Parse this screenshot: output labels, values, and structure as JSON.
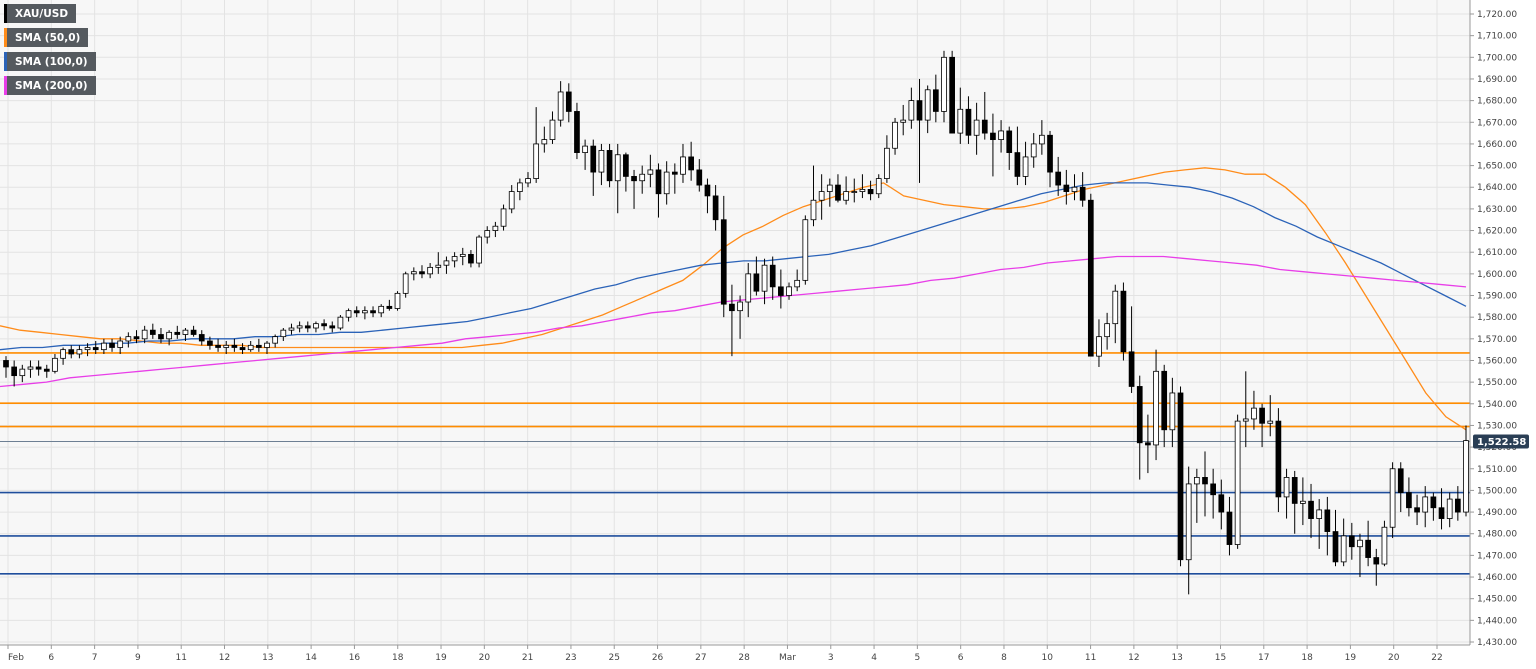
{
  "legend": {
    "symbol": "XAU/USD",
    "sma50": "SMA (50,0)",
    "sma100": "SMA (100,0)",
    "sma200": "SMA (200,0)"
  },
  "last_price_label": "1,522.58",
  "colors": {
    "sma50": "#ff8c1a",
    "sma100": "#2b63b8",
    "sma200": "#e83ee8",
    "resistance": "#ff8c00",
    "support": "#1f4e9c",
    "candle_up": "#ffffff",
    "candle_down": "#000000",
    "last_price": "#2a3e55"
  },
  "chart_data": {
    "type": "candlestick",
    "symbol": "XAU/USD",
    "ylim": [
      1430,
      1720
    ],
    "y_ticks": [
      1430,
      1440,
      1450,
      1460,
      1470,
      1480,
      1490,
      1500,
      1510,
      1520,
      1530,
      1540,
      1550,
      1560,
      1570,
      1580,
      1590,
      1600,
      1610,
      1620,
      1630,
      1640,
      1650,
      1660,
      1670,
      1680,
      1690,
      1700,
      1710,
      1720
    ],
    "y_tick_labels": [
      "1,430.00",
      "1,440.00",
      "1,450.00",
      "1,460.00",
      "1,470.00",
      "1,480.00",
      "1,490.00",
      "1,500.00",
      "1,510.00",
      "1,520.00",
      "1,530.00",
      "1,540.00",
      "1,550.00",
      "1,560.00",
      "1,570.00",
      "1,580.00",
      "1,590.00",
      "1,600.00",
      "1,610.00",
      "1,620.00",
      "1,630.00",
      "1,640.00",
      "1,650.00",
      "1,660.00",
      "1,670.00",
      "1,680.00",
      "1,690.00",
      "1,700.00",
      "1,710.00",
      "1,720.00"
    ],
    "x_labels": [
      "Feb",
      "6",
      "7",
      "9",
      "11",
      "12",
      "13",
      "14",
      "16",
      "18",
      "19",
      "20",
      "21",
      "23",
      "25",
      "26",
      "27",
      "28",
      "Mar",
      "3",
      "4",
      "5",
      "6",
      "8",
      "10",
      "11",
      "12",
      "13",
      "15",
      "17",
      "18",
      "19",
      "20",
      "22"
    ],
    "last_price": 1522.58,
    "horizontal_levels": {
      "resistance": [
        1563.5,
        1540.3,
        1529.5
      ],
      "support": [
        1499.0,
        1479.0,
        1461.5
      ]
    },
    "candles": [
      [
        1560,
        1562,
        1552,
        1557
      ],
      [
        1557,
        1560,
        1548,
        1553
      ],
      [
        1553,
        1558,
        1550,
        1556
      ],
      [
        1556,
        1560,
        1552,
        1557
      ],
      [
        1557,
        1560,
        1553,
        1556
      ],
      [
        1556,
        1558,
        1552,
        1555
      ],
      [
        1555,
        1563,
        1554,
        1561
      ],
      [
        1561,
        1566,
        1558,
        1565
      ],
      [
        1565,
        1567,
        1561,
        1563
      ],
      [
        1563,
        1567,
        1561,
        1565
      ],
      [
        1565,
        1568,
        1562,
        1566
      ],
      [
        1566,
        1569,
        1563,
        1565
      ],
      [
        1565,
        1570,
        1563,
        1568
      ],
      [
        1568,
        1570,
        1564,
        1566
      ],
      [
        1566,
        1571,
        1563,
        1569
      ],
      [
        1569,
        1573,
        1566,
        1571
      ],
      [
        1571,
        1574,
        1568,
        1570
      ],
      [
        1570,
        1576,
        1568,
        1574
      ],
      [
        1574,
        1577,
        1570,
        1572
      ],
      [
        1572,
        1575,
        1568,
        1570
      ],
      [
        1570,
        1574,
        1567,
        1573
      ],
      [
        1573,
        1576,
        1570,
        1572
      ],
      [
        1572,
        1575,
        1569,
        1574
      ],
      [
        1574,
        1576,
        1571,
        1572
      ],
      [
        1572,
        1574,
        1567,
        1569
      ],
      [
        1569,
        1571,
        1565,
        1567
      ],
      [
        1567,
        1570,
        1564,
        1566
      ],
      [
        1566,
        1569,
        1563,
        1567
      ],
      [
        1567,
        1570,
        1564,
        1566
      ],
      [
        1566,
        1568,
        1563,
        1565
      ],
      [
        1565,
        1569,
        1564,
        1567
      ],
      [
        1567,
        1570,
        1564,
        1566
      ],
      [
        1566,
        1569,
        1563,
        1568
      ],
      [
        1568,
        1572,
        1566,
        1571
      ],
      [
        1571,
        1575,
        1569,
        1574
      ],
      [
        1574,
        1577,
        1572,
        1575
      ],
      [
        1575,
        1578,
        1573,
        1576
      ],
      [
        1576,
        1578,
        1573,
        1575
      ],
      [
        1575,
        1578,
        1573,
        1577
      ],
      [
        1577,
        1579,
        1574,
        1576
      ],
      [
        1576,
        1578,
        1573,
        1575
      ],
      [
        1575,
        1581,
        1574,
        1580
      ],
      [
        1580,
        1584,
        1578,
        1583
      ],
      [
        1583,
        1585,
        1580,
        1582
      ],
      [
        1582,
        1585,
        1579,
        1583
      ],
      [
        1583,
        1585,
        1580,
        1582
      ],
      [
        1582,
        1586,
        1580,
        1585
      ],
      [
        1585,
        1588,
        1583,
        1584
      ],
      [
        1584,
        1592,
        1583,
        1591
      ],
      [
        1591,
        1601,
        1589,
        1600
      ],
      [
        1600,
        1603,
        1597,
        1601
      ],
      [
        1601,
        1604,
        1598,
        1600
      ],
      [
        1600,
        1605,
        1598,
        1603
      ],
      [
        1603,
        1610,
        1600,
        1604
      ],
      [
        1604,
        1608,
        1600,
        1606
      ],
      [
        1606,
        1610,
        1603,
        1608
      ],
      [
        1608,
        1612,
        1604,
        1609
      ],
      [
        1609,
        1611,
        1603,
        1605
      ],
      [
        1605,
        1618,
        1603,
        1617
      ],
      [
        1617,
        1622,
        1614,
        1620
      ],
      [
        1620,
        1624,
        1617,
        1622
      ],
      [
        1622,
        1632,
        1620,
        1630
      ],
      [
        1630,
        1641,
        1628,
        1638
      ],
      [
        1638,
        1644,
        1634,
        1642
      ],
      [
        1642,
        1647,
        1640,
        1644
      ],
      [
        1644,
        1677,
        1642,
        1660
      ],
      [
        1660,
        1668,
        1656,
        1662
      ],
      [
        1662,
        1675,
        1660,
        1671
      ],
      [
        1671,
        1689,
        1668,
        1684
      ],
      [
        1684,
        1688,
        1670,
        1675
      ],
      [
        1675,
        1679,
        1653,
        1656
      ],
      [
        1656,
        1662,
        1648,
        1659
      ],
      [
        1659,
        1662,
        1636,
        1647
      ],
      [
        1647,
        1660,
        1641,
        1657
      ],
      [
        1657,
        1660,
        1640,
        1643
      ],
      [
        1643,
        1660,
        1628,
        1655
      ],
      [
        1655,
        1656,
        1638,
        1645
      ],
      [
        1645,
        1648,
        1630,
        1643
      ],
      [
        1643,
        1650,
        1637,
        1646
      ],
      [
        1646,
        1655,
        1640,
        1648
      ],
      [
        1648,
        1651,
        1626,
        1637
      ],
      [
        1637,
        1652,
        1632,
        1647
      ],
      [
        1647,
        1651,
        1637,
        1646
      ],
      [
        1646,
        1660,
        1642,
        1654
      ],
      [
        1654,
        1661,
        1643,
        1648
      ],
      [
        1648,
        1653,
        1638,
        1641
      ],
      [
        1641,
        1644,
        1628,
        1636
      ],
      [
        1636,
        1641,
        1620,
        1625
      ],
      [
        1625,
        1636,
        1580,
        1586
      ],
      [
        1586,
        1595,
        1562,
        1583
      ],
      [
        1583,
        1590,
        1570,
        1587
      ],
      [
        1587,
        1605,
        1580,
        1600
      ],
      [
        1600,
        1608,
        1590,
        1592
      ],
      [
        1592,
        1607,
        1586,
        1604
      ],
      [
        1604,
        1608,
        1588,
        1594
      ],
      [
        1594,
        1602,
        1584,
        1590
      ],
      [
        1590,
        1596,
        1588,
        1594
      ],
      [
        1594,
        1602,
        1592,
        1597
      ],
      [
        1597,
        1627,
        1595,
        1625
      ],
      [
        1625,
        1650,
        1622,
        1634
      ],
      [
        1634,
        1646,
        1625,
        1638
      ],
      [
        1638,
        1644,
        1631,
        1641
      ],
      [
        1641,
        1646,
        1633,
        1634
      ],
      [
        1634,
        1645,
        1632,
        1638
      ],
      [
        1638,
        1644,
        1633,
        1638
      ],
      [
        1638,
        1646,
        1635,
        1639
      ],
      [
        1639,
        1643,
        1634,
        1637
      ],
      [
        1637,
        1646,
        1635,
        1644
      ],
      [
        1644,
        1664,
        1642,
        1658
      ],
      [
        1658,
        1672,
        1655,
        1670
      ],
      [
        1670,
        1678,
        1664,
        1671
      ],
      [
        1671,
        1686,
        1667,
        1680
      ],
      [
        1680,
        1690,
        1642,
        1671
      ],
      [
        1671,
        1687,
        1665,
        1685
      ],
      [
        1685,
        1692,
        1670,
        1675
      ],
      [
        1675,
        1703,
        1670,
        1700
      ],
      [
        1700,
        1703,
        1665,
        1665
      ],
      [
        1665,
        1686,
        1660,
        1676
      ],
      [
        1676,
        1682,
        1660,
        1664
      ],
      [
        1664,
        1679,
        1655,
        1671
      ],
      [
        1671,
        1684,
        1662,
        1665
      ],
      [
        1665,
        1674,
        1645,
        1662
      ],
      [
        1662,
        1671,
        1656,
        1666
      ],
      [
        1666,
        1668,
        1648,
        1656
      ],
      [
        1656,
        1668,
        1641,
        1645
      ],
      [
        1645,
        1661,
        1641,
        1654
      ],
      [
        1654,
        1665,
        1649,
        1660
      ],
      [
        1660,
        1671,
        1655,
        1664
      ],
      [
        1664,
        1666,
        1640,
        1647
      ],
      [
        1647,
        1654,
        1636,
        1641
      ],
      [
        1641,
        1648,
        1632,
        1638
      ],
      [
        1638,
        1646,
        1634,
        1640
      ],
      [
        1640,
        1647,
        1631,
        1634
      ],
      [
        1634,
        1637,
        1562,
        1562
      ],
      [
        1562,
        1579,
        1557,
        1571
      ],
      [
        1571,
        1582,
        1565,
        1577
      ],
      [
        1577,
        1595,
        1568,
        1592
      ],
      [
        1592,
        1596,
        1560,
        1564
      ],
      [
        1564,
        1585,
        1545,
        1548
      ],
      [
        1548,
        1553,
        1505,
        1522
      ],
      [
        1522,
        1535,
        1508,
        1521
      ],
      [
        1521,
        1565,
        1514,
        1555
      ],
      [
        1555,
        1558,
        1520,
        1528
      ],
      [
        1528,
        1552,
        1520,
        1545
      ],
      [
        1545,
        1548,
        1465,
        1468
      ],
      [
        1468,
        1511,
        1452,
        1503
      ],
      [
        1503,
        1510,
        1485,
        1506
      ],
      [
        1506,
        1518,
        1488,
        1503
      ],
      [
        1503,
        1510,
        1487,
        1498
      ],
      [
        1498,
        1505,
        1482,
        1490
      ],
      [
        1490,
        1497,
        1470,
        1475
      ],
      [
        1475,
        1535,
        1473,
        1532
      ],
      [
        1532,
        1555,
        1520,
        1533
      ],
      [
        1533,
        1546,
        1528,
        1538
      ],
      [
        1538,
        1540,
        1520,
        1531
      ],
      [
        1531,
        1544,
        1525,
        1532
      ],
      [
        1532,
        1538,
        1490,
        1497
      ],
      [
        1497,
        1510,
        1487,
        1506
      ],
      [
        1506,
        1509,
        1480,
        1494
      ],
      [
        1494,
        1506,
        1484,
        1495
      ],
      [
        1495,
        1503,
        1478,
        1487
      ],
      [
        1487,
        1496,
        1473,
        1491
      ],
      [
        1491,
        1497,
        1470,
        1481
      ],
      [
        1481,
        1491,
        1465,
        1467
      ],
      [
        1467,
        1487,
        1465,
        1479
      ],
      [
        1479,
        1485,
        1468,
        1474
      ],
      [
        1474,
        1480,
        1460,
        1477
      ],
      [
        1477,
        1486,
        1465,
        1469
      ],
      [
        1469,
        1473,
        1456,
        1466
      ],
      [
        1466,
        1486,
        1465,
        1483
      ],
      [
        1483,
        1513,
        1478,
        1510
      ],
      [
        1510,
        1513,
        1490,
        1499
      ],
      [
        1499,
        1506,
        1488,
        1492
      ],
      [
        1492,
        1498,
        1484,
        1490
      ],
      [
        1490,
        1502,
        1483,
        1497
      ],
      [
        1497,
        1499,
        1486,
        1492
      ],
      [
        1492,
        1501,
        1482,
        1487
      ],
      [
        1487,
        1499,
        1483,
        1496
      ],
      [
        1496,
        1502,
        1486,
        1490
      ],
      [
        1490,
        1530,
        1488,
        1523
      ]
    ],
    "series": [
      {
        "name": "SMA (50,0)",
        "values": [
          1576,
          1574,
          1573,
          1572,
          1571,
          1570,
          1570,
          1569,
          1568,
          1568,
          1567,
          1567,
          1567,
          1566,
          1566,
          1566,
          1566,
          1566,
          1566,
          1566,
          1566,
          1566,
          1566,
          1566,
          1567,
          1568,
          1570,
          1572,
          1575,
          1578,
          1581,
          1585,
          1589,
          1593,
          1597,
          1604,
          1612,
          1618,
          1622,
          1627,
          1631,
          1634,
          1637,
          1640,
          1642,
          1636,
          1634,
          1632,
          1631,
          1630,
          1630,
          1631,
          1633,
          1636,
          1639,
          1641,
          1643,
          1645,
          1647,
          1648,
          1649,
          1648,
          1646,
          1646,
          1640,
          1632,
          1619,
          1605,
          1590,
          1575,
          1560,
          1545,
          1534,
          1528
        ]
      },
      {
        "name": "SMA (100,0)",
        "values": [
          1565,
          1566,
          1566,
          1567,
          1567,
          1568,
          1568,
          1569,
          1569,
          1570,
          1570,
          1570,
          1571,
          1571,
          1572,
          1572,
          1573,
          1573,
          1574,
          1575,
          1576,
          1577,
          1578,
          1580,
          1582,
          1584,
          1587,
          1590,
          1593,
          1595,
          1598,
          1600,
          1602,
          1604,
          1605,
          1606,
          1606,
          1607,
          1608,
          1609,
          1611,
          1613,
          1616,
          1619,
          1622,
          1625,
          1628,
          1631,
          1634,
          1637,
          1639,
          1641,
          1642,
          1642,
          1642,
          1641,
          1640,
          1638,
          1635,
          1631,
          1626,
          1622,
          1617,
          1613,
          1609,
          1605,
          1600,
          1595,
          1590,
          1585
        ]
      },
      {
        "name": "SMA (200,0)",
        "values": [
          1548,
          1549,
          1550,
          1552,
          1553,
          1554,
          1555,
          1556,
          1557,
          1558,
          1559,
          1560,
          1561,
          1562,
          1563,
          1564,
          1565,
          1566,
          1567,
          1568,
          1570,
          1571,
          1572,
          1573,
          1575,
          1576,
          1578,
          1580,
          1582,
          1583,
          1585,
          1587,
          1588,
          1589,
          1590,
          1591,
          1592,
          1593,
          1594,
          1595,
          1597,
          1598,
          1600,
          1602,
          1603,
          1605,
          1606,
          1607,
          1608,
          1608,
          1608,
          1607,
          1606,
          1605,
          1604,
          1602,
          1601,
          1600,
          1599,
          1598,
          1597,
          1596,
          1595,
          1594
        ]
      }
    ]
  }
}
